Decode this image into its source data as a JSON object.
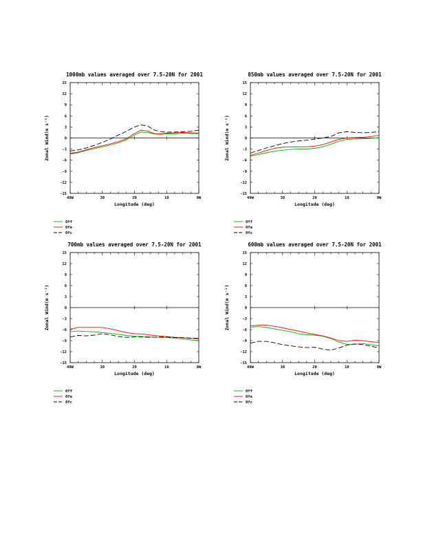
{
  "colors": {
    "0ff": "#00b000",
    "0fe": "#ff0000",
    "0fc": "#000000"
  },
  "chart_data": [
    {
      "type": "line",
      "title": "1000mb values averaged over 7.5-20N for 2001",
      "xlabel": "Longitude (deg)",
      "ylabel": "Zonal Wind(m s⁻¹)",
      "xlim": [
        40,
        0
      ],
      "ylim": [
        -15,
        15
      ],
      "xticks": [
        40,
        30,
        20,
        10,
        0
      ],
      "xticklabels": [
        "40W",
        "30",
        "20",
        "10",
        "0W"
      ],
      "yticks": [
        -15,
        -12,
        -9,
        -6,
        -3,
        0,
        3,
        6,
        9,
        12,
        15
      ],
      "legend_position": "bottom-left",
      "x": [
        40,
        37.5,
        35,
        32.5,
        30,
        27.5,
        25,
        22.5,
        20,
        18,
        16,
        14,
        12,
        10,
        7.5,
        5,
        2.5,
        0
      ],
      "series": [
        {
          "name": "0ff",
          "color_key": "0ff",
          "dashed": false,
          "values": [
            -4.4,
            -4.0,
            -3.4,
            -2.9,
            -2.4,
            -1.9,
            -1.3,
            -0.5,
            0.8,
            1.6,
            1.5,
            1.1,
            1.0,
            1.1,
            1.1,
            1.3,
            1.2,
            1.2
          ]
        },
        {
          "name": "0fe",
          "color_key": "0fe",
          "dashed": false,
          "values": [
            -4.2,
            -3.8,
            -3.2,
            -2.6,
            -2.1,
            -1.6,
            -1.0,
            -0.2,
            1.2,
            2.1,
            1.9,
            1.2,
            1.1,
            1.3,
            1.4,
            1.5,
            1.4,
            1.3
          ]
        },
        {
          "name": "0fc",
          "color_key": "0fc",
          "dashed": true,
          "values": [
            -3.5,
            -3.2,
            -2.7,
            -2.0,
            -1.2,
            -0.3,
            0.8,
            1.8,
            3.0,
            3.5,
            3.3,
            2.2,
            1.7,
            1.6,
            1.6,
            1.7,
            1.8,
            2.1
          ]
        }
      ]
    },
    {
      "type": "line",
      "title": "850mb values averaged over 7.5-20N for 2001",
      "xlabel": "Longitude (deg)",
      "ylabel": "Zonal Wind(m s⁻¹)",
      "xlim": [
        40,
        0
      ],
      "ylim": [
        -15,
        15
      ],
      "xticks": [
        40,
        30,
        20,
        10,
        0
      ],
      "xticklabels": [
        "40W",
        "30",
        "20",
        "10",
        "0W"
      ],
      "yticks": [
        -15,
        -12,
        -9,
        -6,
        -3,
        0,
        3,
        6,
        9,
        12,
        15
      ],
      "legend_position": "bottom-left",
      "x": [
        40,
        37.5,
        35,
        32.5,
        30,
        27.5,
        25,
        22.5,
        20,
        17.5,
        15,
        12.5,
        10,
        7.5,
        5,
        2.5,
        0
      ],
      "series": [
        {
          "name": "0ff",
          "color_key": "0ff",
          "dashed": false,
          "values": [
            -4.9,
            -4.5,
            -4.0,
            -3.6,
            -3.3,
            -3.1,
            -3.0,
            -3.0,
            -2.8,
            -2.4,
            -1.7,
            -0.9,
            -0.4,
            -0.3,
            -0.2,
            -0.1,
            0.1
          ]
        },
        {
          "name": "0fe",
          "color_key": "0fe",
          "dashed": false,
          "values": [
            -4.7,
            -4.1,
            -3.4,
            -2.8,
            -2.5,
            -2.4,
            -2.4,
            -2.4,
            -2.2,
            -1.8,
            -1.1,
            -0.4,
            0.0,
            0.1,
            0.2,
            0.4,
            0.7
          ]
        },
        {
          "name": "0fc",
          "color_key": "0fc",
          "dashed": true,
          "values": [
            -4.1,
            -3.4,
            -2.7,
            -2.1,
            -1.5,
            -1.1,
            -0.8,
            -0.6,
            -0.3,
            0.0,
            0.4,
            1.4,
            1.7,
            1.5,
            1.4,
            1.5,
            1.7
          ]
        }
      ]
    },
    {
      "type": "line",
      "title": "700mb values averaged over 7.5-20N for 2001",
      "xlabel": "Longitude (deg)",
      "ylabel": "Zonal Wind(m s⁻¹)",
      "xlim": [
        40,
        0
      ],
      "ylim": [
        -15,
        15
      ],
      "xticks": [
        40,
        30,
        20,
        10,
        0
      ],
      "xticklabels": [
        "40W",
        "30",
        "20",
        "10",
        "0W"
      ],
      "yticks": [
        -15,
        -12,
        -9,
        -6,
        -3,
        0,
        3,
        6,
        9,
        12,
        15
      ],
      "legend_position": "bottom-left",
      "x": [
        40,
        37.5,
        35,
        32.5,
        30,
        27.5,
        25,
        22.5,
        20,
        17.5,
        15,
        12.5,
        10,
        7.5,
        5,
        2.5,
        0
      ],
      "series": [
        {
          "name": "0ff",
          "color_key": "0ff",
          "dashed": false,
          "values": [
            -6.6,
            -6.4,
            -6.5,
            -6.6,
            -6.8,
            -7.0,
            -7.3,
            -7.6,
            -7.8,
            -7.9,
            -8.0,
            -8.1,
            -8.2,
            -8.3,
            -8.5,
            -8.8,
            -9.1
          ]
        },
        {
          "name": "0fe",
          "color_key": "0fe",
          "dashed": false,
          "values": [
            -5.9,
            -5.4,
            -5.4,
            -5.4,
            -5.4,
            -5.8,
            -6.3,
            -6.8,
            -7.1,
            -7.2,
            -7.5,
            -7.7,
            -7.9,
            -8.1,
            -8.2,
            -8.4,
            -8.5
          ]
        },
        {
          "name": "0fc",
          "color_key": "0fc",
          "dashed": true,
          "values": [
            -8.0,
            -7.6,
            -7.7,
            -7.5,
            -7.1,
            -7.4,
            -7.9,
            -8.1,
            -8.0,
            -8.0,
            -8.1,
            -8.0,
            -8.0,
            -8.2,
            -8.2,
            -8.3,
            -8.4
          ]
        }
      ]
    },
    {
      "type": "line",
      "title": "600mb values averaged over 7.5-20N for 2001",
      "xlabel": "Longitude (deg)",
      "ylabel": "Zonal Wind(m s⁻¹)",
      "xlim": [
        40,
        0
      ],
      "ylim": [
        -15,
        15
      ],
      "xticks": [
        40,
        30,
        20,
        10,
        0
      ],
      "xticklabels": [
        "40W",
        "30",
        "20",
        "10",
        "0W"
      ],
      "yticks": [
        -15,
        -12,
        -9,
        -6,
        -3,
        0,
        3,
        6,
        9,
        12,
        15
      ],
      "legend_position": "bottom-left",
      "x": [
        40,
        37.5,
        35,
        32.5,
        30,
        27.5,
        25,
        22.5,
        20,
        17.5,
        15,
        12.5,
        10,
        7.5,
        5,
        2.5,
        0
      ],
      "series": [
        {
          "name": "0ff",
          "color_key": "0ff",
          "dashed": false,
          "values": [
            -5.3,
            -5.2,
            -5.4,
            -5.8,
            -6.2,
            -6.6,
            -7.1,
            -7.4,
            -7.5,
            -7.8,
            -8.4,
            -9.4,
            -10.0,
            -10.0,
            -9.8,
            -10.1,
            -10.4
          ]
        },
        {
          "name": "0fe",
          "color_key": "0fe",
          "dashed": false,
          "values": [
            -5.0,
            -4.8,
            -4.8,
            -5.1,
            -5.5,
            -6.0,
            -6.4,
            -6.9,
            -7.3,
            -7.7,
            -8.3,
            -9.0,
            -9.2,
            -8.9,
            -9.0,
            -9.3,
            -9.5
          ]
        },
        {
          "name": "0fc",
          "color_key": "0fc",
          "dashed": true,
          "values": [
            -9.7,
            -9.2,
            -9.2,
            -9.6,
            -10.1,
            -10.4,
            -10.7,
            -10.9,
            -10.8,
            -11.3,
            -11.6,
            -11.0,
            -10.2,
            -9.9,
            -10.1,
            -10.5,
            -11.0
          ]
        }
      ]
    }
  ]
}
